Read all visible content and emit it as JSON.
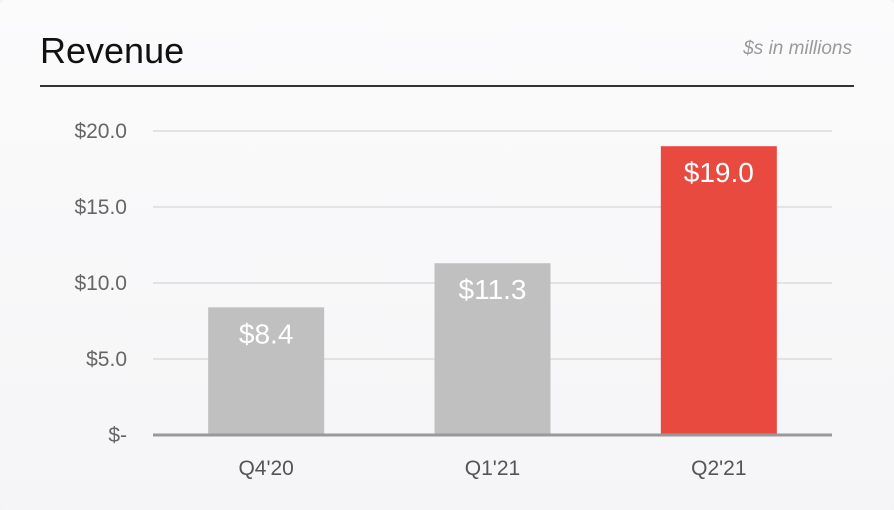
{
  "chart_data": {
    "type": "bar",
    "title": "Revenue",
    "subtitle": "$s in millions",
    "categories": [
      "Q4'20",
      "Q1'21",
      "Q2'21"
    ],
    "values": [
      8.4,
      11.3,
      19.0
    ],
    "data_labels": [
      "$8.4",
      "$11.3",
      "$19.0"
    ],
    "ylim": [
      0,
      20
    ],
    "yticks": [
      0,
      5,
      10,
      15,
      20
    ],
    "ytick_labels": [
      "$-",
      "$5.0",
      "$10.0",
      "$15.0",
      "$20.0"
    ],
    "xlabel": "",
    "ylabel": "",
    "grid": true,
    "legend": "none",
    "colors": {
      "default_bar": "#c0c0c0",
      "highlight_bar": "#e84a40",
      "grid": "#dcdcdc",
      "baseline": "#999999"
    },
    "highlight_index": 2
  }
}
